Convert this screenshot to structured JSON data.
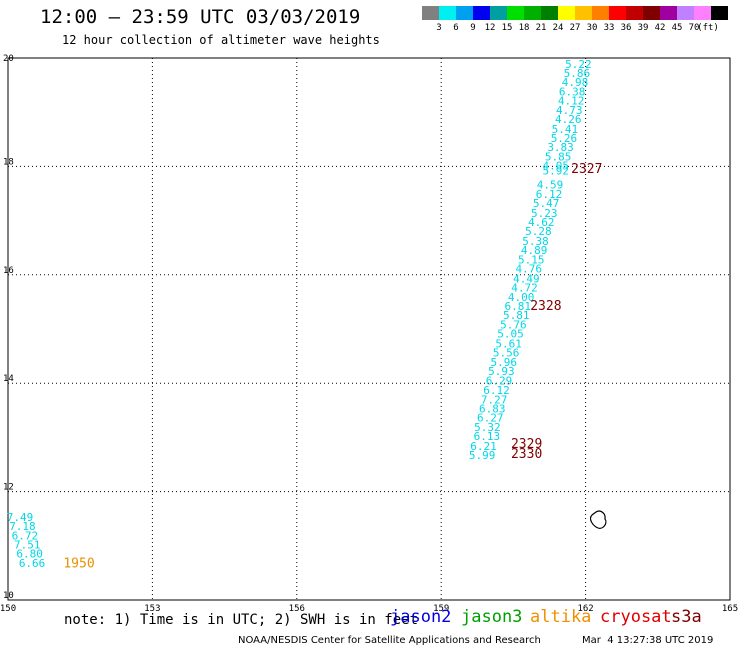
{
  "header": {
    "title": "12:00 – 23:59 UTC 03/03/2019",
    "subtitle": "12 hour collection of altimeter wave heights"
  },
  "colorbar": {
    "unit": "(ft)",
    "colors": [
      "#808080",
      "#00f0f0",
      "#00a0f0",
      "#0000f0",
      "#00a0a0",
      "#00e000",
      "#00b000",
      "#008000",
      "#ffff00",
      "#ffc000",
      "#ff8000",
      "#ff0000",
      "#c00000",
      "#800000",
      "#a000a0",
      "#c080ff",
      "#ff80ff",
      "#000000"
    ],
    "labels": [
      "3",
      "6",
      "9",
      "12",
      "15",
      "18",
      "21",
      "24",
      "27",
      "30",
      "33",
      "36",
      "39",
      "42",
      "45",
      "70"
    ]
  },
  "chart_data": {
    "type": "map",
    "xlim": [
      150,
      165
    ],
    "ylim": [
      10,
      20
    ],
    "x_ticks": [
      "150",
      "153",
      "156",
      "159",
      "162",
      "165"
    ],
    "y_ticks": [
      "10",
      "12",
      "14",
      "16",
      "18",
      "20"
    ],
    "track_main": {
      "color": "#00d8e8",
      "points": [
        {
          "lon": 161.85,
          "lat": 19.82,
          "value": "5.22"
        },
        {
          "lon": 161.82,
          "lat": 19.65,
          "value": "5.86"
        },
        {
          "lon": 161.78,
          "lat": 19.48,
          "value": "4.98"
        },
        {
          "lon": 161.72,
          "lat": 19.31,
          "value": "6.38"
        },
        {
          "lon": 161.7,
          "lat": 19.14,
          "value": "4.12"
        },
        {
          "lon": 161.66,
          "lat": 18.97,
          "value": "4.73"
        },
        {
          "lon": 161.64,
          "lat": 18.8,
          "value": "4.26"
        },
        {
          "lon": 161.57,
          "lat": 18.62,
          "value": "5.41"
        },
        {
          "lon": 161.55,
          "lat": 18.45,
          "value": "5.26"
        },
        {
          "lon": 161.48,
          "lat": 18.28,
          "value": "3.83"
        },
        {
          "lon": 161.43,
          "lat": 18.11,
          "value": "5.85"
        },
        {
          "lon": 161.38,
          "lat": 17.94,
          "value": "4.05"
        },
        {
          "lon": 161.38,
          "lat": 17.85,
          "value": "5.92"
        },
        {
          "lon": 161.26,
          "lat": 17.59,
          "value": "4.59"
        },
        {
          "lon": 161.24,
          "lat": 17.42,
          "value": "6.12"
        },
        {
          "lon": 161.18,
          "lat": 17.25,
          "value": "5.47"
        },
        {
          "lon": 161.14,
          "lat": 17.07,
          "value": "5.23"
        },
        {
          "lon": 161.08,
          "lat": 16.9,
          "value": "4.62"
        },
        {
          "lon": 161.02,
          "lat": 16.73,
          "value": "5.28"
        },
        {
          "lon": 160.96,
          "lat": 16.55,
          "value": "5.38"
        },
        {
          "lon": 160.93,
          "lat": 16.38,
          "value": "4.89"
        },
        {
          "lon": 160.87,
          "lat": 16.21,
          "value": "5.15"
        },
        {
          "lon": 160.82,
          "lat": 16.04,
          "value": "4.76"
        },
        {
          "lon": 160.77,
          "lat": 15.86,
          "value": "4.49"
        },
        {
          "lon": 160.73,
          "lat": 15.69,
          "value": "4.72"
        },
        {
          "lon": 160.66,
          "lat": 15.52,
          "value": "4.00"
        },
        {
          "lon": 160.59,
          "lat": 15.35,
          "value": "6.81"
        },
        {
          "lon": 160.56,
          "lat": 15.18,
          "value": "5.81"
        },
        {
          "lon": 160.5,
          "lat": 15.01,
          "value": "5.76"
        },
        {
          "lon": 160.44,
          "lat": 14.84,
          "value": "5.05"
        },
        {
          "lon": 160.4,
          "lat": 14.66,
          "value": "5.61"
        },
        {
          "lon": 160.35,
          "lat": 14.49,
          "value": "5.56"
        },
        {
          "lon": 160.3,
          "lat": 14.32,
          "value": "5.96"
        },
        {
          "lon": 160.25,
          "lat": 14.15,
          "value": "5.93"
        },
        {
          "lon": 160.2,
          "lat": 13.98,
          "value": "6.29"
        },
        {
          "lon": 160.15,
          "lat": 13.8,
          "value": "6.12"
        },
        {
          "lon": 160.1,
          "lat": 13.63,
          "value": "7.27"
        },
        {
          "lon": 160.06,
          "lat": 13.46,
          "value": "6.83"
        },
        {
          "lon": 160.02,
          "lat": 13.29,
          "value": "6.27"
        },
        {
          "lon": 159.96,
          "lat": 13.12,
          "value": "5.32"
        },
        {
          "lon": 159.95,
          "lat": 12.95,
          "value": "6.13"
        },
        {
          "lon": 159.88,
          "lat": 12.77,
          "value": "6.21"
        },
        {
          "lon": 159.85,
          "lat": 12.6,
          "value": "5.99"
        }
      ]
    },
    "track_west": {
      "color": "#00d8e8",
      "points": [
        {
          "lon": 150.25,
          "lat": 11.46,
          "value": "7.49"
        },
        {
          "lon": 150.3,
          "lat": 11.29,
          "value": "7.18"
        },
        {
          "lon": 150.35,
          "lat": 11.12,
          "value": "6.72"
        },
        {
          "lon": 150.4,
          "lat": 10.95,
          "value": "7.51"
        },
        {
          "lon": 150.45,
          "lat": 10.78,
          "value": "6.80"
        },
        {
          "lon": 150.5,
          "lat": 10.61,
          "value": "6.66"
        }
      ]
    },
    "pass_labels": [
      {
        "text": "2327",
        "lon": 161.7,
        "lat": 17.88,
        "color": "#800000"
      },
      {
        "text": "2328",
        "lon": 160.85,
        "lat": 15.35,
        "color": "#800000"
      },
      {
        "text": "2329",
        "lon": 160.45,
        "lat": 12.8,
        "color": "#800000"
      },
      {
        "text": "2330",
        "lon": 160.45,
        "lat": 12.62,
        "color": "#800000"
      },
      {
        "text": "1950",
        "lon": 151.15,
        "lat": 10.6,
        "color": "#e89000"
      }
    ]
  },
  "footer": {
    "note": "note: 1) Time is in UTC; 2) SWH is in feet",
    "missions": [
      {
        "name": "jason2",
        "color": "#0000e0"
      },
      {
        "name": "jason3",
        "color": "#00a000"
      },
      {
        "name": "altika",
        "color": "#f09000"
      },
      {
        "name": "cryosat",
        "color": "#e00000"
      },
      {
        "name": "s3a",
        "color": "#800000"
      }
    ],
    "credit": "NOAA/NESDIS Center for Satellite Applications and Research",
    "timestamp": "Mar  4 13:27:38 UTC 2019"
  }
}
